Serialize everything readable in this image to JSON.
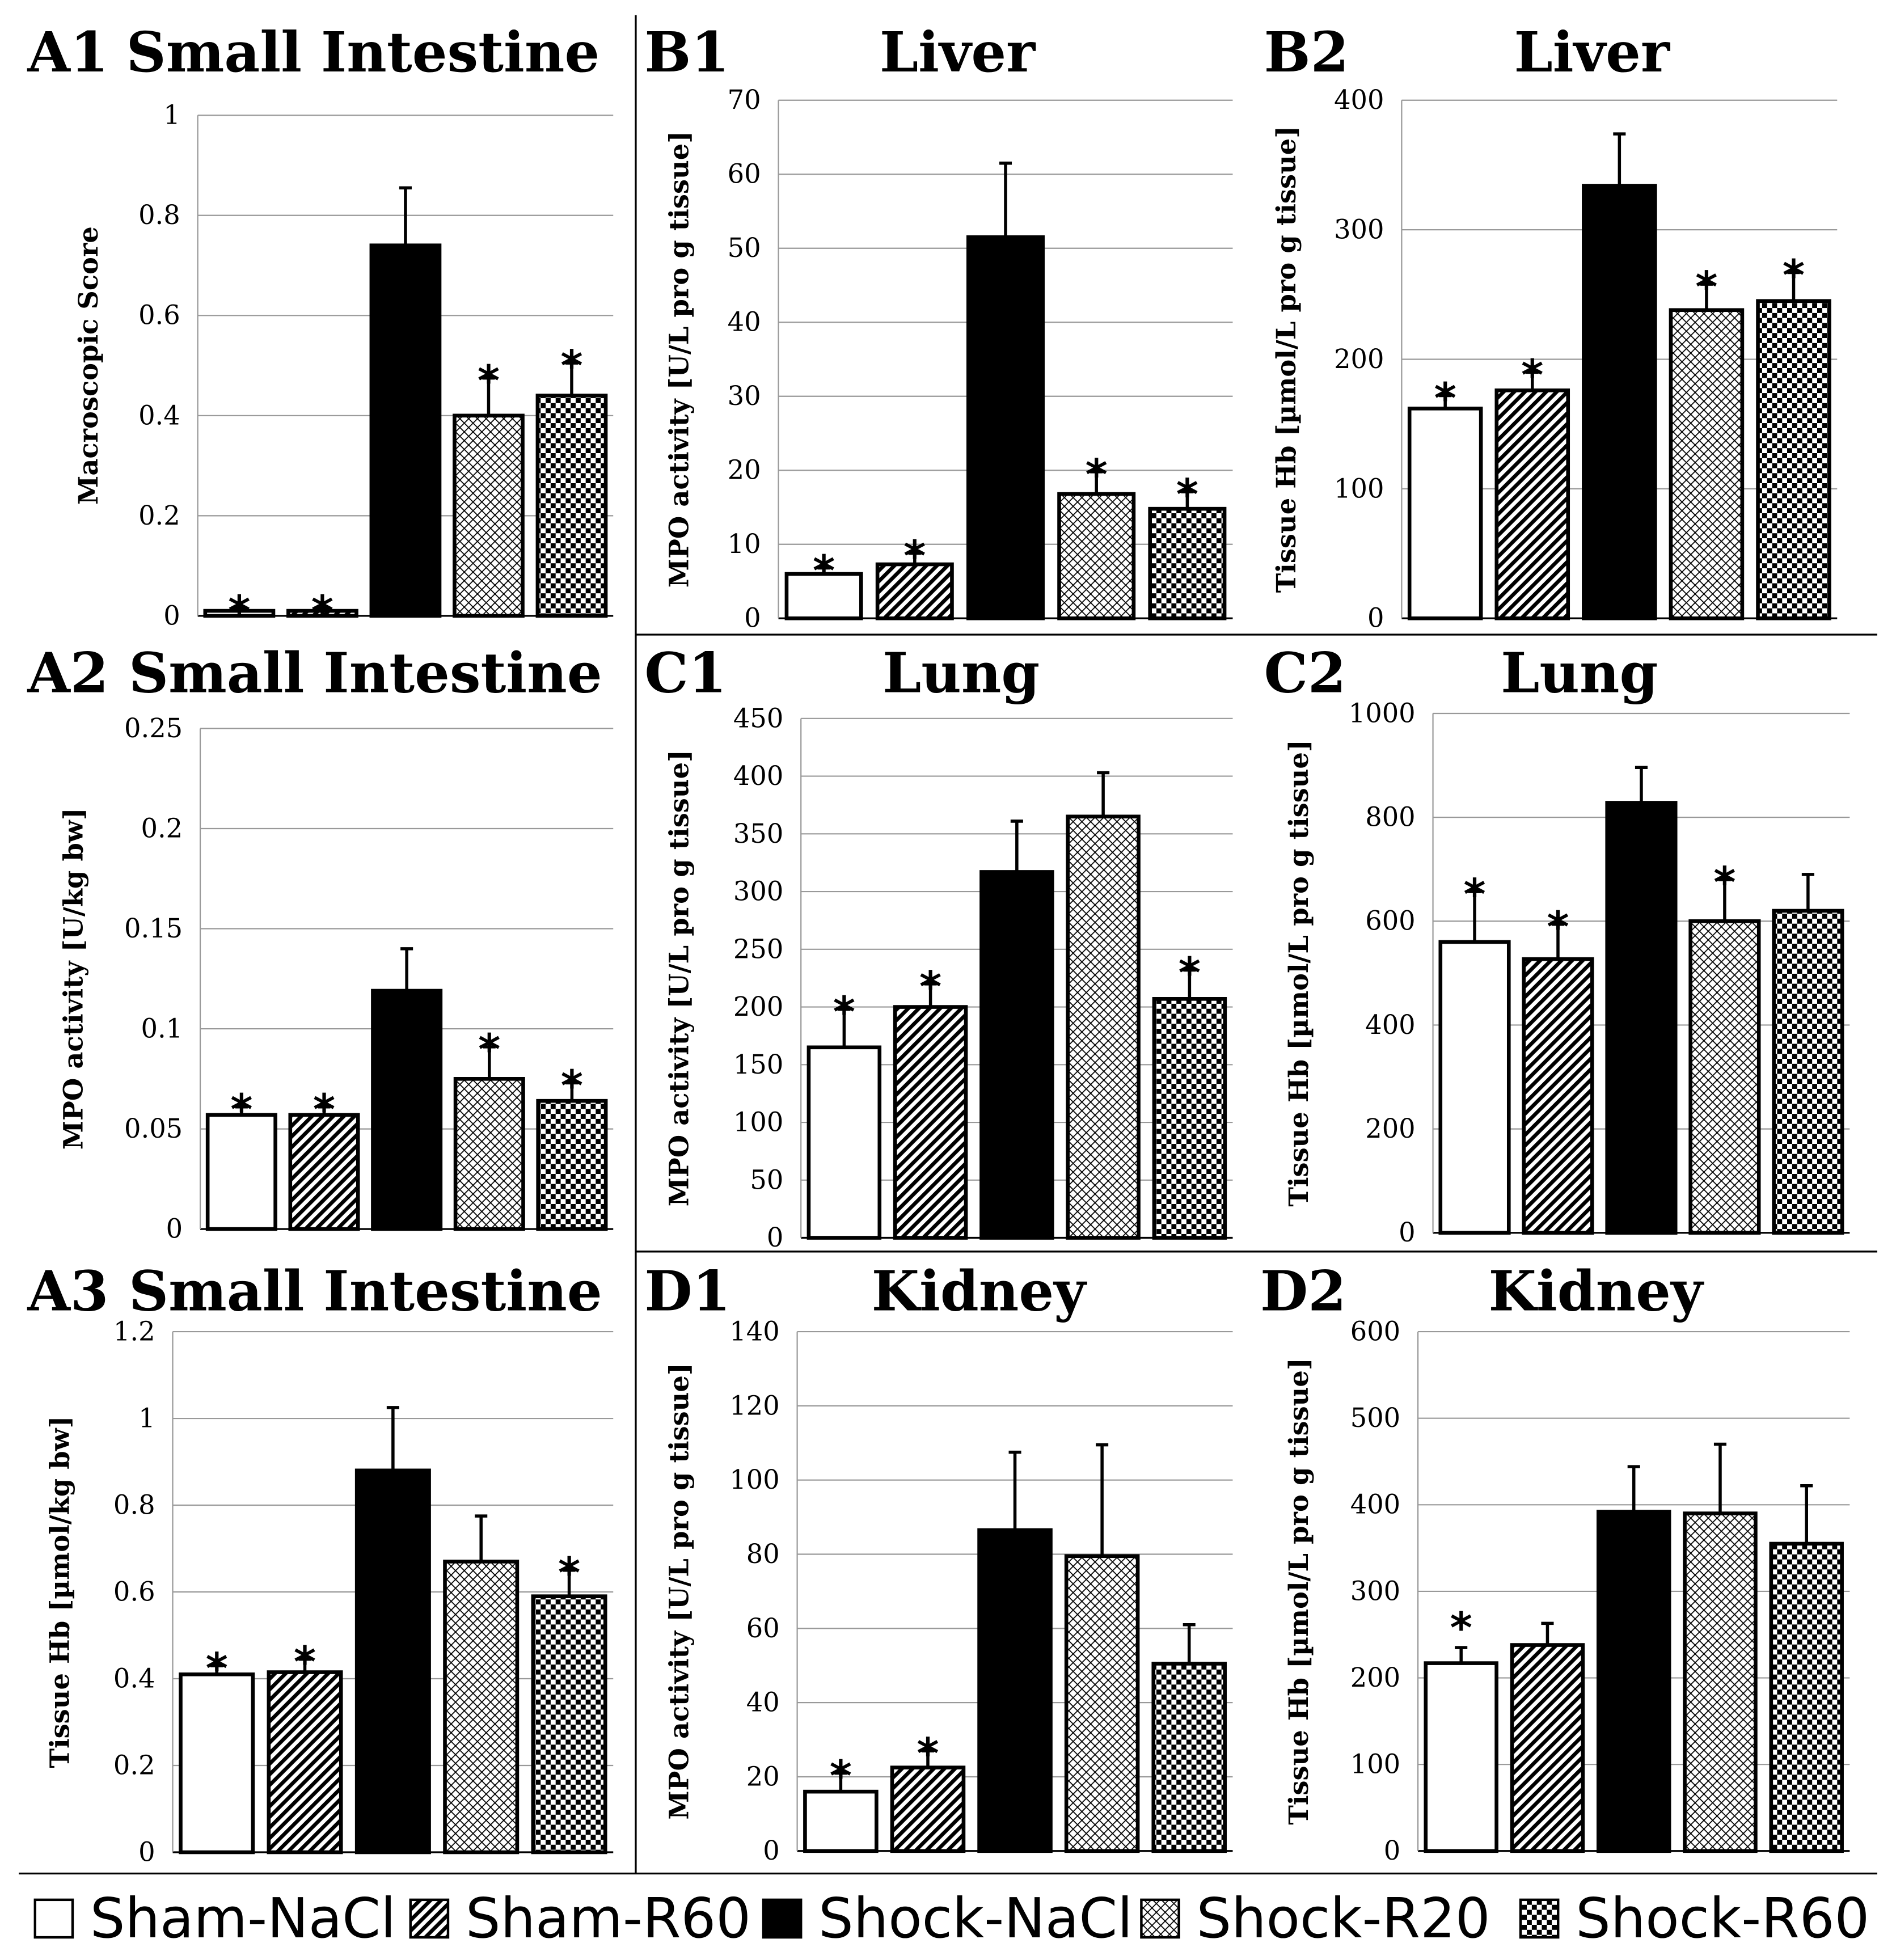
{
  "legend": [
    "Sham-NaCl",
    "Sham-R60",
    "Shock-NaCl",
    "Shock-R20",
    "Shock-R60"
  ],
  "chart_data": [
    {
      "id": "A1",
      "type": "bar",
      "title": "Small Intestine",
      "ylabel": "Macroscopic Score",
      "ylim": [
        0,
        1
      ],
      "yticks": [
        "0",
        "0.2",
        "0.4",
        "0.6",
        "0.8",
        "1"
      ],
      "categories": [
        "Sham-NaCl",
        "Sham-R60",
        "Shock-NaCl",
        "Shock-R20",
        "Shock-R60"
      ],
      "values": [
        0.01,
        0.01,
        0.74,
        0.4,
        0.44
      ],
      "errors": [
        0.005,
        0.005,
        0.115,
        0.075,
        0.065
      ],
      "significant": [
        true,
        true,
        false,
        true,
        true
      ]
    },
    {
      "id": "A2",
      "type": "bar",
      "title": "Small Intestine",
      "ylabel": "MPO activity [U/kg bw]",
      "ylim": [
        0,
        0.25
      ],
      "yticks": [
        "0",
        "0.05",
        "0.1",
        "0.15",
        "0.2",
        "0.25"
      ],
      "categories": [
        "Sham-NaCl",
        "Sham-R60",
        "Shock-NaCl",
        "Shock-R20",
        "Shock-R60"
      ],
      "values": [
        0.057,
        0.057,
        0.119,
        0.075,
        0.064
      ],
      "errors": [
        0.004,
        0.004,
        0.021,
        0.016,
        0.009
      ],
      "significant": [
        true,
        true,
        false,
        true,
        true
      ]
    },
    {
      "id": "A3",
      "type": "bar",
      "title": "Small Intestine",
      "ylabel": "Tissue Hb [µmol/kg bw]",
      "ylim": [
        0,
        1.2
      ],
      "yticks": [
        "0",
        "0.2",
        "0.4",
        "0.6",
        "0.8",
        "1",
        "1.2"
      ],
      "categories": [
        "Sham-NaCl",
        "Sham-R60",
        "Shock-NaCl",
        "Shock-R20",
        "Shock-R60"
      ],
      "values": [
        0.41,
        0.415,
        0.88,
        0.67,
        0.59
      ],
      "errors": [
        0.02,
        0.03,
        0.145,
        0.105,
        0.06
      ],
      "significant": [
        true,
        true,
        false,
        false,
        true
      ]
    },
    {
      "id": "B1",
      "type": "bar",
      "title": "Liver",
      "ylabel": "MPO activity [U/L pro g tissue]",
      "ylim": [
        0,
        70
      ],
      "yticks": [
        "0",
        "10",
        "20",
        "30",
        "40",
        "50",
        "60",
        "70"
      ],
      "categories": [
        "Sham-NaCl",
        "Sham-R60",
        "Shock-NaCl",
        "Shock-R20",
        "Shock-R60"
      ],
      "values": [
        6,
        7.3,
        51.5,
        16.8,
        14.8
      ],
      "errors": [
        0.8,
        1.5,
        10,
        3,
        2.3
      ],
      "significant": [
        true,
        true,
        false,
        true,
        true
      ]
    },
    {
      "id": "B2",
      "type": "bar",
      "title": "Liver",
      "ylabel": "Tissue Hb [µmol/L pro g tissue]",
      "ylim": [
        0,
        400
      ],
      "yticks": [
        "0",
        "100",
        "200",
        "300",
        "400"
      ],
      "categories": [
        "Sham-NaCl",
        "Sham-R60",
        "Shock-NaCl",
        "Shock-R20",
        "Shock-R60"
      ],
      "values": [
        162,
        176,
        334,
        238,
        245
      ],
      "errors": [
        10,
        14,
        40,
        20,
        22
      ],
      "significant": [
        true,
        true,
        false,
        true,
        true
      ]
    },
    {
      "id": "C1",
      "type": "bar",
      "title": "Lung",
      "ylabel": "MPO activity [U/L pro g tissue]",
      "ylim": [
        0,
        450
      ],
      "yticks": [
        "0",
        "50",
        "100",
        "150",
        "200",
        "250",
        "300",
        "350",
        "400",
        "450"
      ],
      "categories": [
        "Sham-NaCl",
        "Sham-R60",
        "Shock-NaCl",
        "Shock-R20",
        "Shock-R60"
      ],
      "values": [
        165,
        200,
        317,
        365,
        207
      ],
      "errors": [
        33,
        20,
        44,
        38,
        25
      ],
      "significant": [
        true,
        true,
        false,
        false,
        true
      ]
    },
    {
      "id": "C2",
      "type": "bar",
      "title": "Lung",
      "ylabel": "Tissue Hb [µmol/L pro g tissue]",
      "ylim": [
        0,
        1000
      ],
      "yticks": [
        "0",
        "200",
        "400",
        "600",
        "800",
        "1000"
      ],
      "categories": [
        "Sham-NaCl",
        "Sham-R60",
        "Shock-NaCl",
        "Shock-R20",
        "Shock-R60"
      ],
      "values": [
        560,
        527,
        828,
        600,
        620
      ],
      "errors": [
        97,
        67,
        68,
        80,
        70
      ],
      "significant": [
        true,
        true,
        false,
        true,
        false
      ]
    },
    {
      "id": "D1",
      "type": "bar",
      "title": "Kidney",
      "ylabel": "MPO activity [U/L pro g tissue]",
      "ylim": [
        0,
        140
      ],
      "yticks": [
        "0",
        "20",
        "40",
        "60",
        "80",
        "100",
        "120",
        "140"
      ],
      "categories": [
        "Sham-NaCl",
        "Sham-R60",
        "Shock-NaCl",
        "Shock-R20",
        "Shock-R60"
      ],
      "values": [
        16,
        22.5,
        86.5,
        79.5,
        50.5
      ],
      "errors": [
        5,
        4.5,
        21,
        30,
        10.5
      ],
      "significant": [
        true,
        true,
        false,
        false,
        false
      ]
    },
    {
      "id": "D2",
      "type": "bar",
      "title": "Kidney",
      "ylabel": "Tissue Hb [µmol/L pro g tissue]",
      "ylim": [
        0,
        600
      ],
      "yticks": [
        "0",
        "100",
        "200",
        "300",
        "400",
        "500",
        "600"
      ],
      "categories": [
        "Sham-NaCl",
        "Sham-R60",
        "Shock-NaCl",
        "Shock-R20",
        "Shock-R60"
      ],
      "values": [
        217,
        238,
        392,
        390,
        355
      ],
      "errors": [
        18,
        25,
        52,
        80,
        67
      ],
      "significant": [
        true,
        false,
        false,
        false,
        false
      ]
    }
  ]
}
